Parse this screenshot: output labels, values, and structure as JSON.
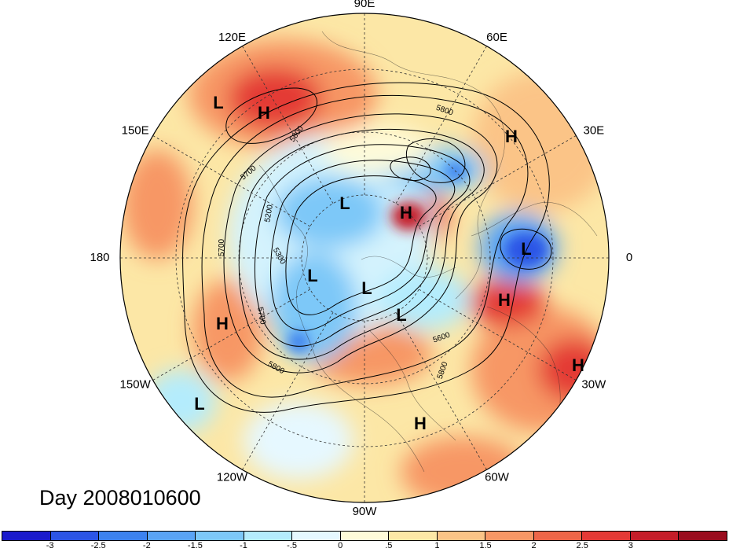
{
  "title": "Day 2008010600",
  "longitude_labels": [
    {
      "label": "90E",
      "lon": 90
    },
    {
      "label": "60E",
      "lon": 60
    },
    {
      "label": "30E",
      "lon": 30
    },
    {
      "label": "0",
      "lon": 0
    },
    {
      "label": "30W",
      "lon": -30
    },
    {
      "label": "60W",
      "lon": -60
    },
    {
      "label": "90W",
      "lon": -90
    },
    {
      "label": "120W",
      "lon": -120
    },
    {
      "label": "150W",
      "lon": -150
    },
    {
      "label": "180",
      "lon": 180
    },
    {
      "label": "150E",
      "lon": 150
    },
    {
      "label": "120E",
      "lon": 120
    }
  ],
  "pressure_centers": [
    {
      "type": "L"
    },
    {
      "type": "H"
    },
    {
      "type": "H"
    },
    {
      "type": "L"
    },
    {
      "type": "H"
    },
    {
      "type": "L"
    },
    {
      "type": "L"
    },
    {
      "type": "L"
    },
    {
      "type": "H"
    },
    {
      "type": "L"
    },
    {
      "type": "H"
    },
    {
      "type": "L"
    },
    {
      "type": "H"
    },
    {
      "type": "H"
    }
  ],
  "contour_labels": [
    "5800",
    "5800",
    "5700",
    "5200",
    "5300",
    "5700",
    "5700",
    "5800",
    "5600",
    "5800"
  ],
  "colorbar": {
    "colors": [
      "#1a1acc",
      "#2c55e6",
      "#3c82ef",
      "#5aa4f5",
      "#7dc8f8",
      "#b4ecfd",
      "#e6f8ff",
      "#fefbd9",
      "#fce7a6",
      "#fbc487",
      "#f79765",
      "#ee6648",
      "#e43a36",
      "#c51d29",
      "#9a0c1d"
    ],
    "ticks": [
      "-3",
      "-2.5",
      "-2",
      "-1.5",
      "-1",
      "-.5",
      "0",
      ".5",
      "1",
      "1.5",
      "2",
      "2.5",
      "3"
    ]
  }
}
